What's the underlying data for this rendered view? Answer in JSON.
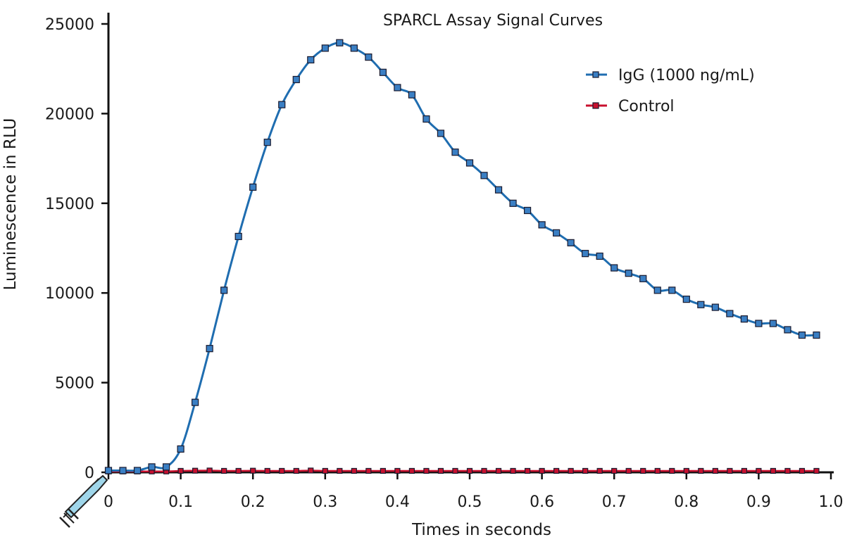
{
  "chart_data": {
    "type": "line",
    "title": "SPARCL Assay Signal Curves",
    "xlabel": "Times in seconds",
    "ylabel": "Luminescence in RLU",
    "xlim": [
      0,
      1.0
    ],
    "ylim": [
      0,
      25000
    ],
    "x_ticks": [
      "0",
      "0.1",
      "0.2",
      "0.3",
      "0.4",
      "0.5",
      "0.6",
      "0.7",
      "0.8",
      "0.9",
      "1.0"
    ],
    "y_ticks": [
      "0",
      "5000",
      "10000",
      "15000",
      "20000",
      "25000"
    ],
    "grid": false,
    "legend_position": "top-right",
    "x": [
      0,
      0.02,
      0.04,
      0.06,
      0.08,
      0.1,
      0.12,
      0.14,
      0.16,
      0.18,
      0.2,
      0.22,
      0.24,
      0.26,
      0.28,
      0.3,
      0.32,
      0.34,
      0.36,
      0.38,
      0.4,
      0.42,
      0.44,
      0.46,
      0.48,
      0.5,
      0.52,
      0.54,
      0.56,
      0.58,
      0.6,
      0.62,
      0.64,
      0.66,
      0.68,
      0.7,
      0.72,
      0.74,
      0.76,
      0.78,
      0.8,
      0.82,
      0.84,
      0.86,
      0.88,
      0.9,
      0.92,
      0.94,
      0.96,
      0.98
    ],
    "series": [
      {
        "name": "IgG (1000 ng/mL)",
        "color": "#1f6db0",
        "marker_color": "#3a7fc4",
        "values": [
          100,
          100,
          100,
          300,
          300,
          1300,
          3900,
          6900,
          10150,
          13150,
          15900,
          18400,
          20500,
          21900,
          23000,
          23650,
          23950,
          23650,
          23150,
          22300,
          21450,
          21050,
          19700,
          18900,
          17850,
          17250,
          16550,
          15750,
          15000,
          14600,
          13800,
          13350,
          12800,
          12200,
          12050,
          11400,
          11100,
          10800,
          10150,
          10150,
          9650,
          9350,
          9200,
          8850,
          8550,
          8300,
          8300,
          7950,
          7650,
          7650
        ]
      },
      {
        "name": "Control",
        "color": "#c8102e",
        "marker_color": "#c8102e",
        "values": [
          50,
          50,
          50,
          50,
          50,
          80,
          90,
          100,
          80,
          80,
          90,
          80,
          80,
          80,
          100,
          80,
          80,
          80,
          80,
          80,
          80,
          80,
          80,
          80,
          80,
          80,
          80,
          80,
          80,
          80,
          80,
          80,
          80,
          80,
          80,
          80,
          80,
          80,
          80,
          80,
          80,
          80,
          80,
          80,
          80,
          80,
          80,
          80,
          80,
          80
        ]
      }
    ]
  }
}
